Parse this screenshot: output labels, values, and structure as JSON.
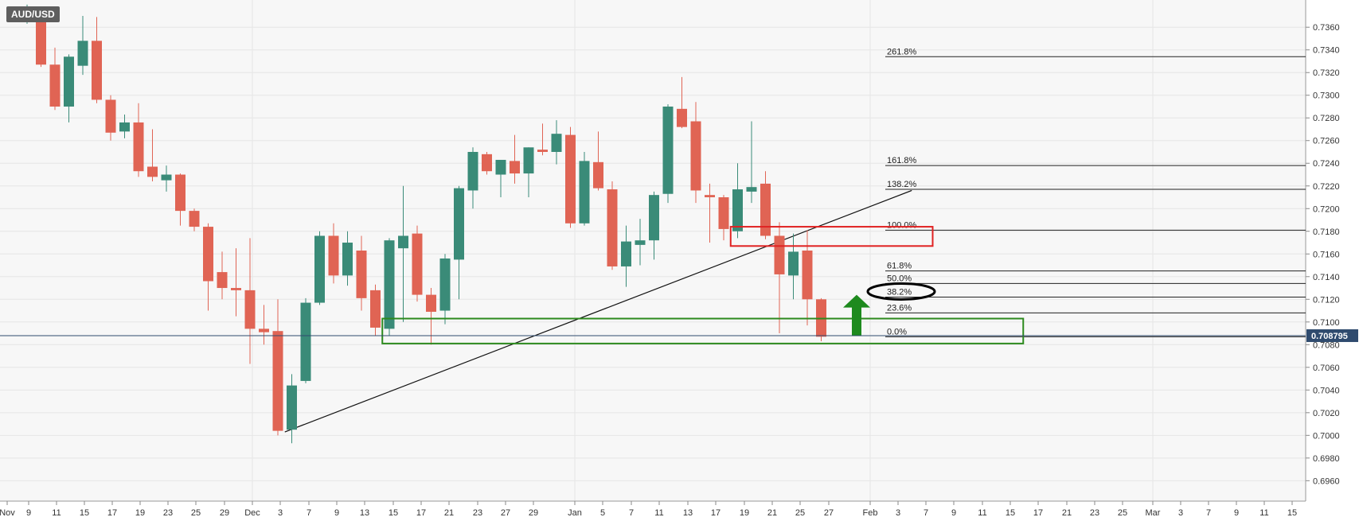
{
  "symbol": "AUD/USD",
  "price_label": "0.708795",
  "colors": {
    "bull": "#3a8b78",
    "bear": "#e06454",
    "grid": "#e6e6e6",
    "background": "#f7f7f7",
    "price_tag": "#2f4b6e",
    "support_box": "#2d8a1e",
    "resistance_box": "#e02222",
    "arrow": "#1e8a1e"
  },
  "chart_data": {
    "type": "candlestick",
    "ylim": [
      0.6942,
      0.7384
    ],
    "y_ticks": [
      "0.7360",
      "0.7340",
      "0.7320",
      "0.7300",
      "0.7280",
      "0.7260",
      "0.7240",
      "0.7220",
      "0.7200",
      "0.7180",
      "0.7160",
      "0.7140",
      "0.7120",
      "0.7100",
      "0.7080",
      "0.7060",
      "0.7040",
      "0.7020",
      "0.7000",
      "0.6980",
      "0.6960"
    ],
    "x_tick_labels": [
      "Nov",
      "9",
      "11",
      "15",
      "17",
      "19",
      "23",
      "25",
      "29",
      "Dec",
      "3",
      "7",
      "9",
      "13",
      "15",
      "17",
      "21",
      "23",
      "27",
      "29",
      "Jan",
      "5",
      "7",
      "11",
      "13",
      "17",
      "19",
      "21",
      "25",
      "27",
      "Feb",
      "3",
      "7",
      "9",
      "11",
      "15",
      "17",
      "21",
      "23",
      "25",
      "Mar",
      "3",
      "7",
      "9",
      "11",
      "15"
    ],
    "candles": [
      {
        "o": 0.7372,
        "h": 0.738,
        "l": 0.7363,
        "c": 0.7375
      },
      {
        "o": 0.7373,
        "h": 0.7377,
        "l": 0.7325,
        "c": 0.7327
      },
      {
        "o": 0.7327,
        "h": 0.7342,
        "l": 0.7287,
        "c": 0.729
      },
      {
        "o": 0.729,
        "h": 0.7336,
        "l": 0.7276,
        "c": 0.7334
      },
      {
        "o": 0.7326,
        "h": 0.737,
        "l": 0.7318,
        "c": 0.7348
      },
      {
        "o": 0.7348,
        "h": 0.7369,
        "l": 0.7293,
        "c": 0.7296
      },
      {
        "o": 0.7296,
        "h": 0.73,
        "l": 0.726,
        "c": 0.7267
      },
      {
        "o": 0.7268,
        "h": 0.7283,
        "l": 0.7262,
        "c": 0.7276
      },
      {
        "o": 0.7276,
        "h": 0.7293,
        "l": 0.7228,
        "c": 0.7233
      },
      {
        "o": 0.7237,
        "h": 0.727,
        "l": 0.7224,
        "c": 0.7228
      },
      {
        "o": 0.7225,
        "h": 0.7238,
        "l": 0.7215,
        "c": 0.723
      },
      {
        "o": 0.723,
        "h": 0.7231,
        "l": 0.7185,
        "c": 0.7198
      },
      {
        "o": 0.7198,
        "h": 0.72,
        "l": 0.718,
        "c": 0.7184
      },
      {
        "o": 0.7184,
        "h": 0.7187,
        "l": 0.711,
        "c": 0.7136
      },
      {
        "o": 0.7144,
        "h": 0.7162,
        "l": 0.712,
        "c": 0.713
      },
      {
        "o": 0.713,
        "h": 0.7165,
        "l": 0.7105,
        "c": 0.7128
      },
      {
        "o": 0.7128,
        "h": 0.7174,
        "l": 0.7063,
        "c": 0.7094
      },
      {
        "o": 0.7094,
        "h": 0.7115,
        "l": 0.708,
        "c": 0.7091
      },
      {
        "o": 0.7092,
        "h": 0.712,
        "l": 0.7,
        "c": 0.7004
      },
      {
        "o": 0.7005,
        "h": 0.7054,
        "l": 0.6993,
        "c": 0.7044
      },
      {
        "o": 0.7048,
        "h": 0.7121,
        "l": 0.7046,
        "c": 0.7117
      },
      {
        "o": 0.7117,
        "h": 0.718,
        "l": 0.7115,
        "c": 0.7176
      },
      {
        "o": 0.7176,
        "h": 0.7187,
        "l": 0.7134,
        "c": 0.7141
      },
      {
        "o": 0.7141,
        "h": 0.718,
        "l": 0.7132,
        "c": 0.717
      },
      {
        "o": 0.7163,
        "h": 0.7176,
        "l": 0.711,
        "c": 0.7121
      },
      {
        "o": 0.7128,
        "h": 0.7133,
        "l": 0.7088,
        "c": 0.7095
      },
      {
        "o": 0.7094,
        "h": 0.7174,
        "l": 0.7088,
        "c": 0.7172
      },
      {
        "o": 0.7165,
        "h": 0.722,
        "l": 0.71,
        "c": 0.7176
      },
      {
        "o": 0.7178,
        "h": 0.7185,
        "l": 0.7118,
        "c": 0.7124
      },
      {
        "o": 0.7124,
        "h": 0.713,
        "l": 0.708,
        "c": 0.7109
      },
      {
        "o": 0.711,
        "h": 0.716,
        "l": 0.7098,
        "c": 0.7156
      },
      {
        "o": 0.7155,
        "h": 0.722,
        "l": 0.712,
        "c": 0.7218
      },
      {
        "o": 0.7216,
        "h": 0.7254,
        "l": 0.72,
        "c": 0.725
      },
      {
        "o": 0.7248,
        "h": 0.725,
        "l": 0.723,
        "c": 0.7233
      },
      {
        "o": 0.723,
        "h": 0.7243,
        "l": 0.721,
        "c": 0.7243
      },
      {
        "o": 0.7242,
        "h": 0.7265,
        "l": 0.7222,
        "c": 0.7231
      },
      {
        "o": 0.7231,
        "h": 0.7254,
        "l": 0.721,
        "c": 0.7254
      },
      {
        "o": 0.7252,
        "h": 0.7275,
        "l": 0.7247,
        "c": 0.725
      },
      {
        "o": 0.725,
        "h": 0.7278,
        "l": 0.7239,
        "c": 0.7266
      },
      {
        "o": 0.7265,
        "h": 0.7272,
        "l": 0.7183,
        "c": 0.7187
      },
      {
        "o": 0.7187,
        "h": 0.725,
        "l": 0.7185,
        "c": 0.7242
      },
      {
        "o": 0.7241,
        "h": 0.7268,
        "l": 0.7216,
        "c": 0.7218
      },
      {
        "o": 0.7217,
        "h": 0.7224,
        "l": 0.7146,
        "c": 0.7149
      },
      {
        "o": 0.7149,
        "h": 0.7185,
        "l": 0.7131,
        "c": 0.7171
      },
      {
        "o": 0.7168,
        "h": 0.7191,
        "l": 0.715,
        "c": 0.7172
      },
      {
        "o": 0.7172,
        "h": 0.7215,
        "l": 0.7155,
        "c": 0.7212
      },
      {
        "o": 0.7213,
        "h": 0.7292,
        "l": 0.7205,
        "c": 0.729
      },
      {
        "o": 0.7288,
        "h": 0.7316,
        "l": 0.7271,
        "c": 0.7272
      },
      {
        "o": 0.7277,
        "h": 0.7294,
        "l": 0.7205,
        "c": 0.7216
      },
      {
        "o": 0.7212,
        "h": 0.7222,
        "l": 0.717,
        "c": 0.721
      },
      {
        "o": 0.721,
        "h": 0.7212,
        "l": 0.7172,
        "c": 0.7182
      },
      {
        "o": 0.718,
        "h": 0.724,
        "l": 0.7174,
        "c": 0.7217
      },
      {
        "o": 0.7215,
        "h": 0.7277,
        "l": 0.7205,
        "c": 0.7219
      },
      {
        "o": 0.7222,
        "h": 0.7233,
        "l": 0.7173,
        "c": 0.7176
      },
      {
        "o": 0.7176,
        "h": 0.7188,
        "l": 0.709,
        "c": 0.7142
      },
      {
        "o": 0.7141,
        "h": 0.7178,
        "l": 0.712,
        "c": 0.7162
      },
      {
        "o": 0.7163,
        "h": 0.7181,
        "l": 0.7097,
        "c": 0.712
      },
      {
        "o": 0.712,
        "h": 0.7121,
        "l": 0.7083,
        "c": 0.7087
      }
    ],
    "fibonacci": [
      {
        "label": "261.8%",
        "price": 0.7334
      },
      {
        "label": "161.8%",
        "price": 0.7238
      },
      {
        "label": "138.2%",
        "price": 0.7217
      },
      {
        "label": "100.0%",
        "price": 0.7181
      },
      {
        "label": "61.8%",
        "price": 0.7145
      },
      {
        "label": "50.0%",
        "price": 0.7134
      },
      {
        "label": "38.2%",
        "price": 0.7122
      },
      {
        "label": "23.6%",
        "price": 0.7108
      },
      {
        "label": "0.0%",
        "price": 0.7087
      }
    ],
    "current_price": 0.708795,
    "trendline": {
      "from": {
        "i": 18.5,
        "price": 0.7003
      },
      "to": {
        "i": 63.5,
        "price": 0.7216
      }
    },
    "support_zone": {
      "from_i": 25.5,
      "to_i": 71.5,
      "top": 0.7103,
      "bottom": 0.7081
    },
    "resistance_zone": {
      "from_i": 50.5,
      "to_i": 65,
      "top": 0.7184,
      "bottom": 0.7167
    },
    "highlighted_level": "38.2%"
  }
}
